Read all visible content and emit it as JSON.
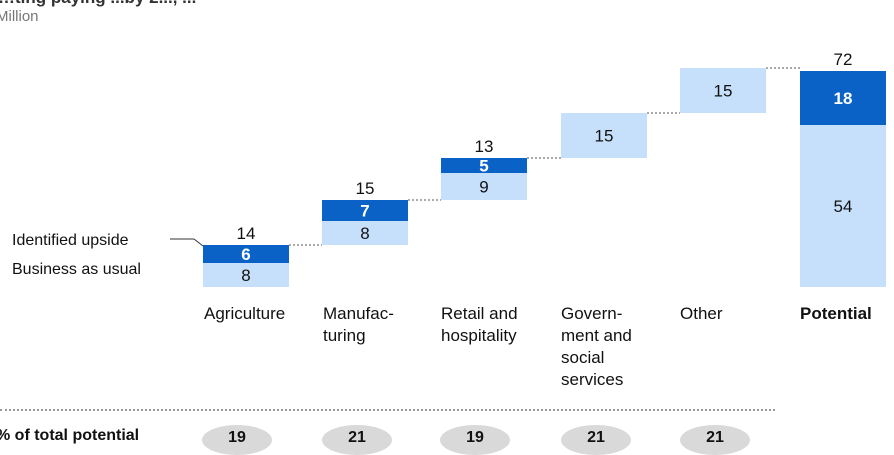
{
  "header": {
    "title": "…ting paying ...by 2..., ...",
    "unit": "Million"
  },
  "legend": {
    "identified_upside": "Identified upside",
    "business_as_usual": "Business as usual"
  },
  "colors": {
    "business_as_usual": "#c6dffa",
    "identified_upside": "#0a62c6",
    "connector": "#555555",
    "pill": "#d9d9d9"
  },
  "chart_data": {
    "type": "bar",
    "subtype": "waterfall",
    "categories": [
      "Agriculture",
      "Manufac-\nturing",
      "Retail and\nhospitality",
      "Govern-\nment and\nsocial\nservices",
      "Other",
      "Potential"
    ],
    "series": [
      {
        "name": "Business as usual",
        "values": [
          8,
          8,
          9,
          15,
          15,
          54
        ]
      },
      {
        "name": "Identified upside",
        "values": [
          6,
          7,
          5,
          0,
          0,
          18
        ]
      }
    ],
    "totals": [
      14,
      15,
      13,
      null,
      null,
      72
    ],
    "ylim": [
      0,
      72
    ],
    "grid": false,
    "legend_position": "left"
  },
  "footer": {
    "label": "% of total potential",
    "values": [
      "19",
      "21",
      "19",
      "21",
      "21"
    ]
  }
}
